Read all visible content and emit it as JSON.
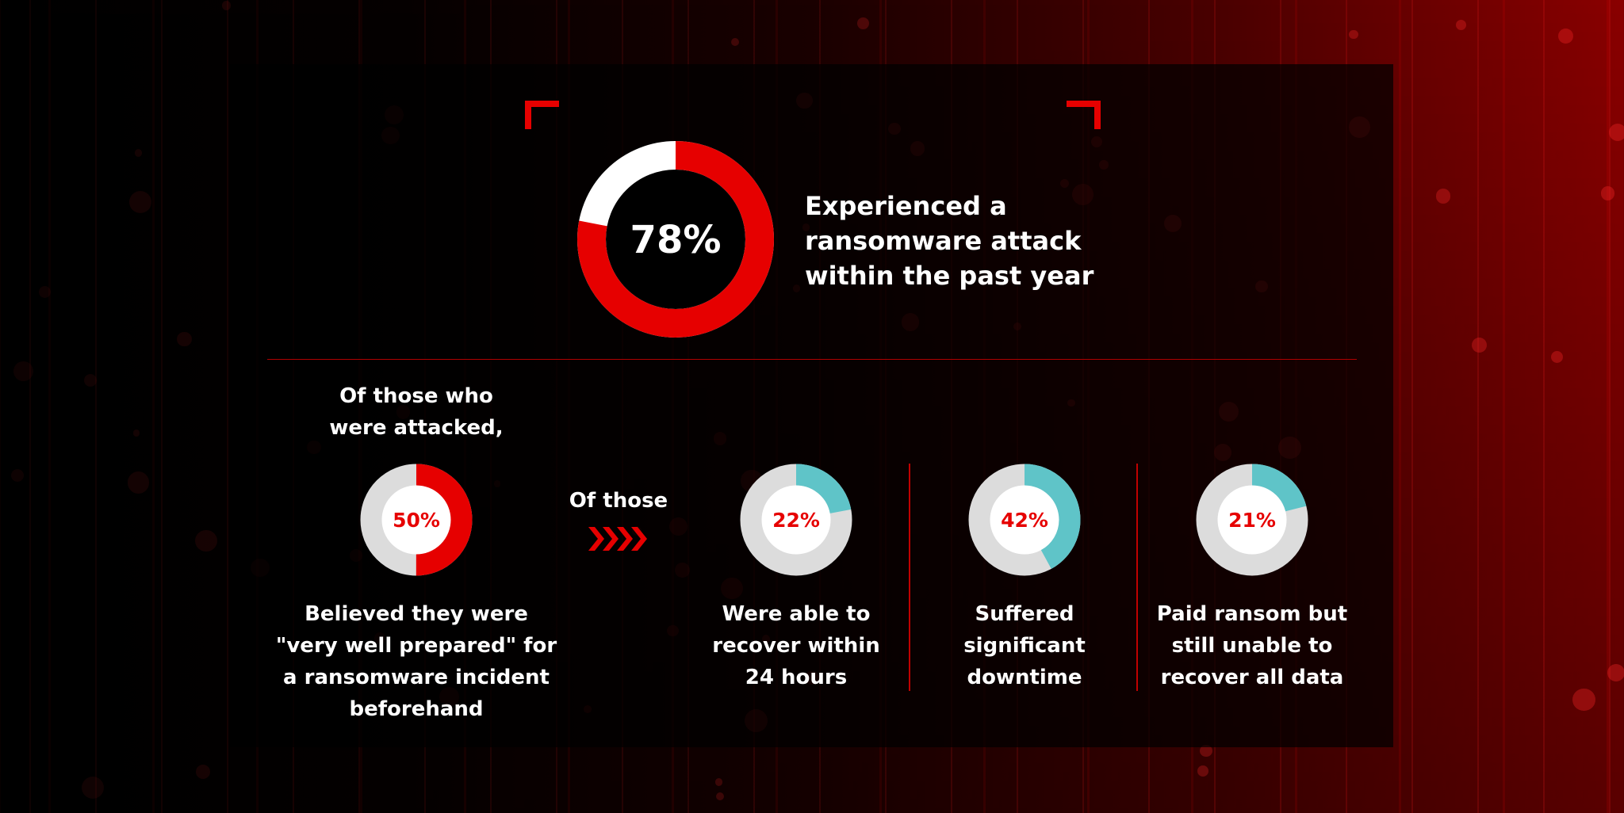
{
  "colors": {
    "accent": "#e60000",
    "teal": "#5fc4c8",
    "track": "#dcdcdc"
  },
  "headline": {
    "percent": "78%",
    "value": 78,
    "lines": [
      "Experienced a",
      "ransomware attack",
      "within the past year"
    ]
  },
  "intro": {
    "lines": [
      "Of those who",
      "were attacked,"
    ]
  },
  "transition": {
    "label": "Of those",
    "icon": "chevrons-right-icon"
  },
  "stats": [
    {
      "percent": "50%",
      "value": 50,
      "color": "#e60000",
      "lines": [
        "Believed they were",
        "\"very well prepared\" for",
        "a ransomware incident",
        "beforehand"
      ]
    },
    {
      "percent": "22%",
      "value": 22,
      "color": "#5fc4c8",
      "lines": [
        "Were able to",
        "recover within",
        "24 hours"
      ]
    },
    {
      "percent": "42%",
      "value": 42,
      "color": "#5fc4c8",
      "lines": [
        "Suffered",
        "significant",
        "downtime"
      ]
    },
    {
      "percent": "21%",
      "value": 21,
      "color": "#5fc4c8",
      "lines": [
        "Paid ransom but",
        "still unable to",
        "recover all data"
      ]
    }
  ]
}
